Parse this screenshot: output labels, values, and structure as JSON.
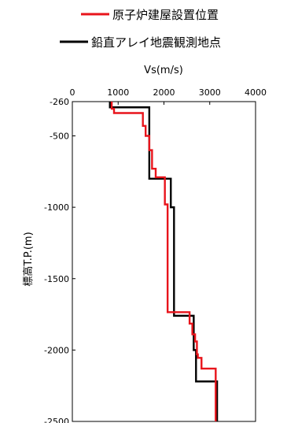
{
  "chart_data": {
    "type": "line",
    "title": "",
    "xlabel": "Vs(m/s)",
    "ylabel": "標高T.P.(m)",
    "x_axis_position": "top",
    "xlim": [
      0,
      4000
    ],
    "ylim": [
      -2500,
      -260
    ],
    "x_ticks": [
      0,
      1000,
      2000,
      3000,
      4000
    ],
    "y_ticks": [
      -260,
      -500,
      -1000,
      -1500,
      -2000,
      -2500
    ],
    "grid": false,
    "legend_position": "top",
    "series": [
      {
        "name": "原子炉建屋設置位置",
        "color": "#e8141b",
        "x": [
          860,
          860,
          910,
          910,
          1540,
          1540,
          1600,
          1600,
          1680,
          1680,
          1740,
          1740,
          1820,
          1820,
          2020,
          2020,
          2080,
          2080,
          2560,
          2560,
          2620,
          2620,
          2680,
          2680,
          2720,
          2720,
          2740,
          2740,
          2820,
          2820,
          3130,
          3130
        ],
        "y": [
          -260,
          -310,
          -310,
          -340,
          -340,
          -430,
          -430,
          -500,
          -500,
          -600,
          -600,
          -730,
          -730,
          -790,
          -790,
          -980,
          -980,
          -1735,
          -1735,
          -1815,
          -1815,
          -1890,
          -1890,
          -1940,
          -1940,
          -2030,
          -2030,
          -2055,
          -2055,
          -2130,
          -2130,
          -2500
        ]
      },
      {
        "name": "鉛直アレイ地震観測地点",
        "color": "#000000",
        "x": [
          820,
          820,
          1680,
          1680,
          2150,
          2150,
          2220,
          2220,
          2650,
          2650,
          2700,
          2700,
          3160,
          3160
        ],
        "y": [
          -260,
          -300,
          -300,
          -800,
          -800,
          -1000,
          -1000,
          -1760,
          -1760,
          -2000,
          -2000,
          -2220,
          -2220,
          -2500
        ]
      }
    ]
  }
}
